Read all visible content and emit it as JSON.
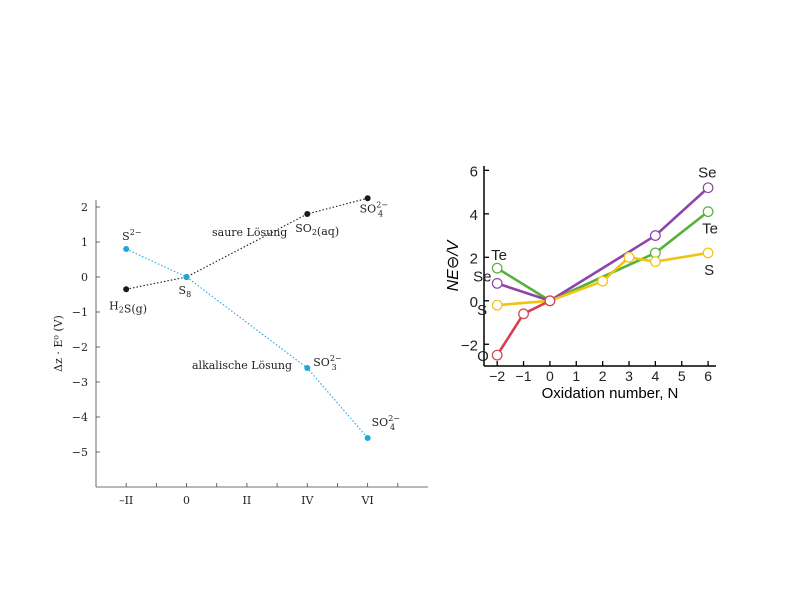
{
  "chart_data": [
    {
      "type": "line",
      "title": "",
      "xlabel": "",
      "ylabel": "Δz · E⁰ (V)",
      "categories": [
        "–II",
        "0",
        "II",
        "IV",
        "VI"
      ],
      "category_values": [
        -2,
        0,
        2,
        4,
        6
      ],
      "xlim": [
        -3,
        8
      ],
      "ylim": [
        -6,
        2.2
      ],
      "yticks": [
        2,
        1,
        0,
        -1,
        -2,
        -3,
        -4,
        -5
      ],
      "ytick_labels": [
        "2",
        "1",
        "0",
        "−1",
        "−2",
        "−3",
        "−4",
        "−5"
      ],
      "grid": false,
      "series": [
        {
          "name": "saure Lösung",
          "color": "#1a1a1a",
          "style": "dotted",
          "points": [
            {
              "x": -2,
              "y": -0.35,
              "label": "H2S(g)"
            },
            {
              "x": 0,
              "y": 0,
              "label": "S8"
            },
            {
              "x": 4,
              "y": 1.8,
              "label": "SO2(aq)"
            },
            {
              "x": 6,
              "y": 2.25,
              "label": "SO4 2−"
            }
          ]
        },
        {
          "name": "alkalische Lösung",
          "color": "#1fa7dc",
          "style": "dotted",
          "points": [
            {
              "x": -2,
              "y": 0.8,
              "label": "S2−"
            },
            {
              "x": 0,
              "y": 0,
              "label": ""
            },
            {
              "x": 4,
              "y": -2.6,
              "label": "SO3 2−"
            },
            {
              "x": 6,
              "y": -4.6,
              "label": "SO4 2−"
            }
          ]
        }
      ]
    },
    {
      "type": "line",
      "title": "",
      "xlabel": "Oxidation number, N",
      "ylabel": "NE⊖/V",
      "xlim": [
        -2.5,
        6.3
      ],
      "ylim": [
        -3.0,
        6.2
      ],
      "xticks": [
        -2,
        -1,
        0,
        1,
        2,
        3,
        4,
        5,
        6
      ],
      "xtick_labels": [
        "−2",
        "−1",
        "0",
        "1",
        "2",
        "3",
        "4",
        "5",
        "6"
      ],
      "yticks": [
        -2,
        0,
        2,
        4,
        6
      ],
      "ytick_labels": [
        "−2",
        "0",
        "2",
        "4",
        "6"
      ],
      "grid": false,
      "series": [
        {
          "name": "O",
          "color": "#d6404f",
          "label_at": "start",
          "x": [
            -2,
            -1,
            0
          ],
          "y": [
            -2.5,
            -0.6,
            0
          ]
        },
        {
          "name": "S",
          "color": "#f2c20f",
          "label_at": "both",
          "x": [
            -2,
            0,
            2,
            3,
            4,
            6
          ],
          "y": [
            -0.2,
            0,
            0.9,
            2.0,
            1.8,
            2.2
          ]
        },
        {
          "name": "Se",
          "color": "#8e44a8",
          "label_at": "both",
          "x": [
            -2,
            0,
            4,
            6
          ],
          "y": [
            0.8,
            0,
            3.0,
            5.2
          ]
        },
        {
          "name": "Te",
          "color": "#55b13c",
          "label_at": "both",
          "x": [
            -2,
            0,
            4,
            6
          ],
          "y": [
            1.5,
            0,
            2.2,
            4.1
          ]
        }
      ]
    }
  ]
}
